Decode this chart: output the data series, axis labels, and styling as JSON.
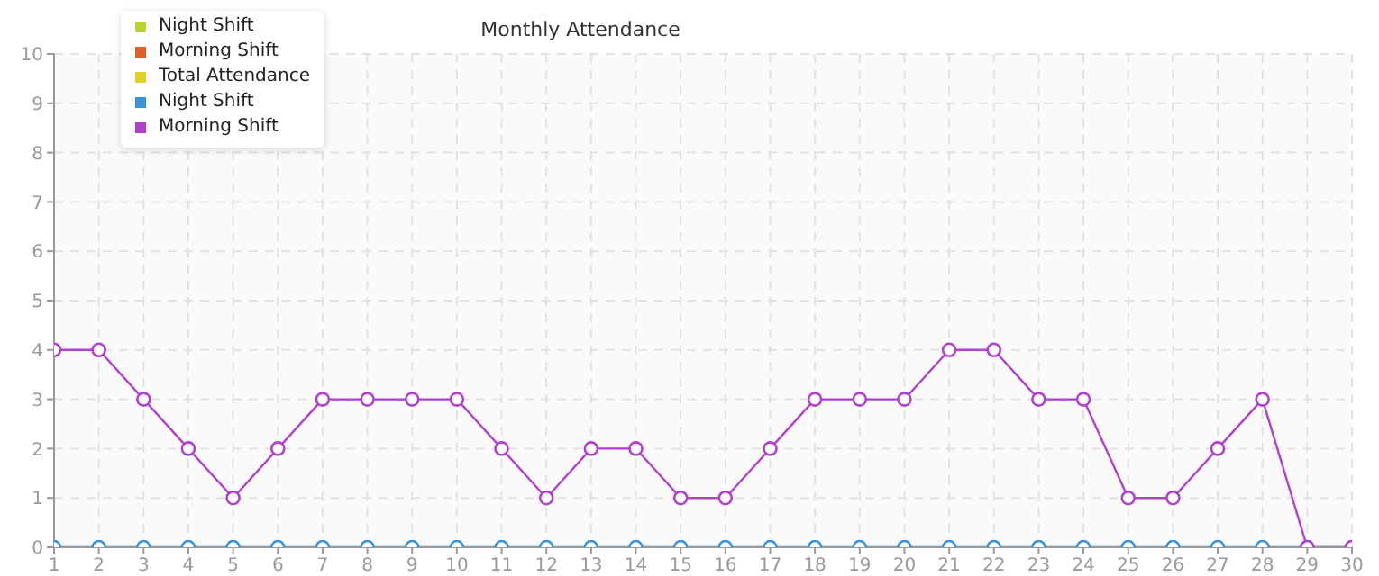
{
  "chart_data": {
    "type": "line",
    "title": "Monthly Attendance",
    "x": [
      1,
      2,
      3,
      4,
      5,
      6,
      7,
      8,
      9,
      10,
      11,
      12,
      13,
      14,
      15,
      16,
      17,
      18,
      19,
      20,
      21,
      22,
      23,
      24,
      25,
      26,
      27,
      28,
      29,
      30
    ],
    "series": [
      {
        "name": "Night Shift",
        "color": "#b8d334",
        "values": [
          null,
          null,
          null,
          null,
          null,
          null,
          null,
          null,
          null,
          null,
          null,
          null,
          null,
          null,
          null,
          null,
          null,
          null,
          null,
          null,
          null,
          null,
          null,
          null,
          null,
          null,
          null,
          null,
          null,
          null
        ]
      },
      {
        "name": "Morning Shift",
        "color": "#e0622a",
        "values": [
          null,
          null,
          null,
          null,
          null,
          null,
          null,
          null,
          null,
          null,
          null,
          null,
          null,
          null,
          null,
          null,
          null,
          null,
          null,
          null,
          null,
          null,
          null,
          null,
          null,
          null,
          null,
          null,
          null,
          null
        ]
      },
      {
        "name": "Total Attendance",
        "color": "#e2d12a",
        "values": [
          null,
          null,
          null,
          null,
          null,
          null,
          null,
          null,
          null,
          null,
          null,
          null,
          null,
          null,
          null,
          null,
          null,
          null,
          null,
          null,
          null,
          null,
          null,
          null,
          null,
          null,
          null,
          null,
          null,
          null
        ]
      },
      {
        "name": "Night Shift",
        "color": "#3592dc",
        "values": [
          0,
          0,
          0,
          0,
          0,
          0,
          0,
          0,
          0,
          0,
          0,
          0,
          0,
          0,
          0,
          0,
          0,
          0,
          0,
          0,
          0,
          0,
          0,
          0,
          0,
          0,
          0,
          0,
          0,
          0
        ]
      },
      {
        "name": "Morning Shift",
        "color": "#b23fcf",
        "values": [
          4,
          4,
          3,
          2,
          1,
          2,
          3,
          3,
          3,
          3,
          2,
          1,
          2,
          2,
          1,
          1,
          2,
          3,
          3,
          3,
          4,
          4,
          3,
          3,
          1,
          1,
          2,
          3,
          0,
          0
        ]
      }
    ],
    "xlim": [
      1,
      30
    ],
    "xticks": [
      1,
      2,
      3,
      4,
      5,
      6,
      7,
      8,
      9,
      10,
      11,
      12,
      13,
      14,
      15,
      16,
      17,
      18,
      19,
      20,
      21,
      22,
      23,
      24,
      25,
      26,
      27,
      28,
      29,
      30
    ],
    "ylim": [
      0,
      10
    ],
    "yticks": [
      0,
      1,
      2,
      3,
      4,
      5,
      6,
      7,
      8,
      9,
      10
    ],
    "grid": true,
    "legend": "top left",
    "marker": "circle",
    "line_style": "solid"
  }
}
